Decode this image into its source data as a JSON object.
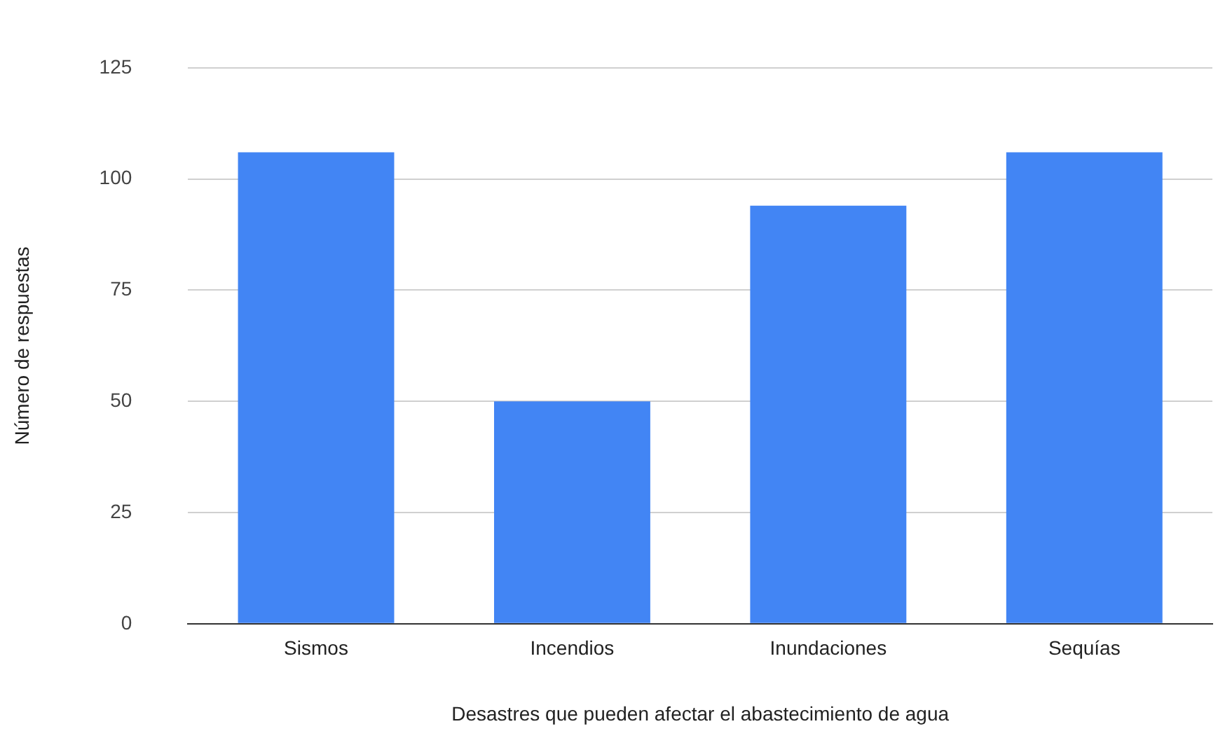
{
  "chart_data": {
    "type": "bar",
    "xlabel": "Desastres que pueden afectar el abastecimiento de agua",
    "ylabel": "Número de respuestas",
    "categories": [
      "Sismos",
      "Incendios",
      "Inundaciones",
      "Sequías"
    ],
    "values": [
      106,
      50,
      94,
      106
    ],
    "color": "#4285f4",
    "ylim": [
      0,
      125
    ],
    "yticks": [
      0,
      25,
      50,
      75,
      100,
      125
    ],
    "grid": "y",
    "legend": false
  }
}
